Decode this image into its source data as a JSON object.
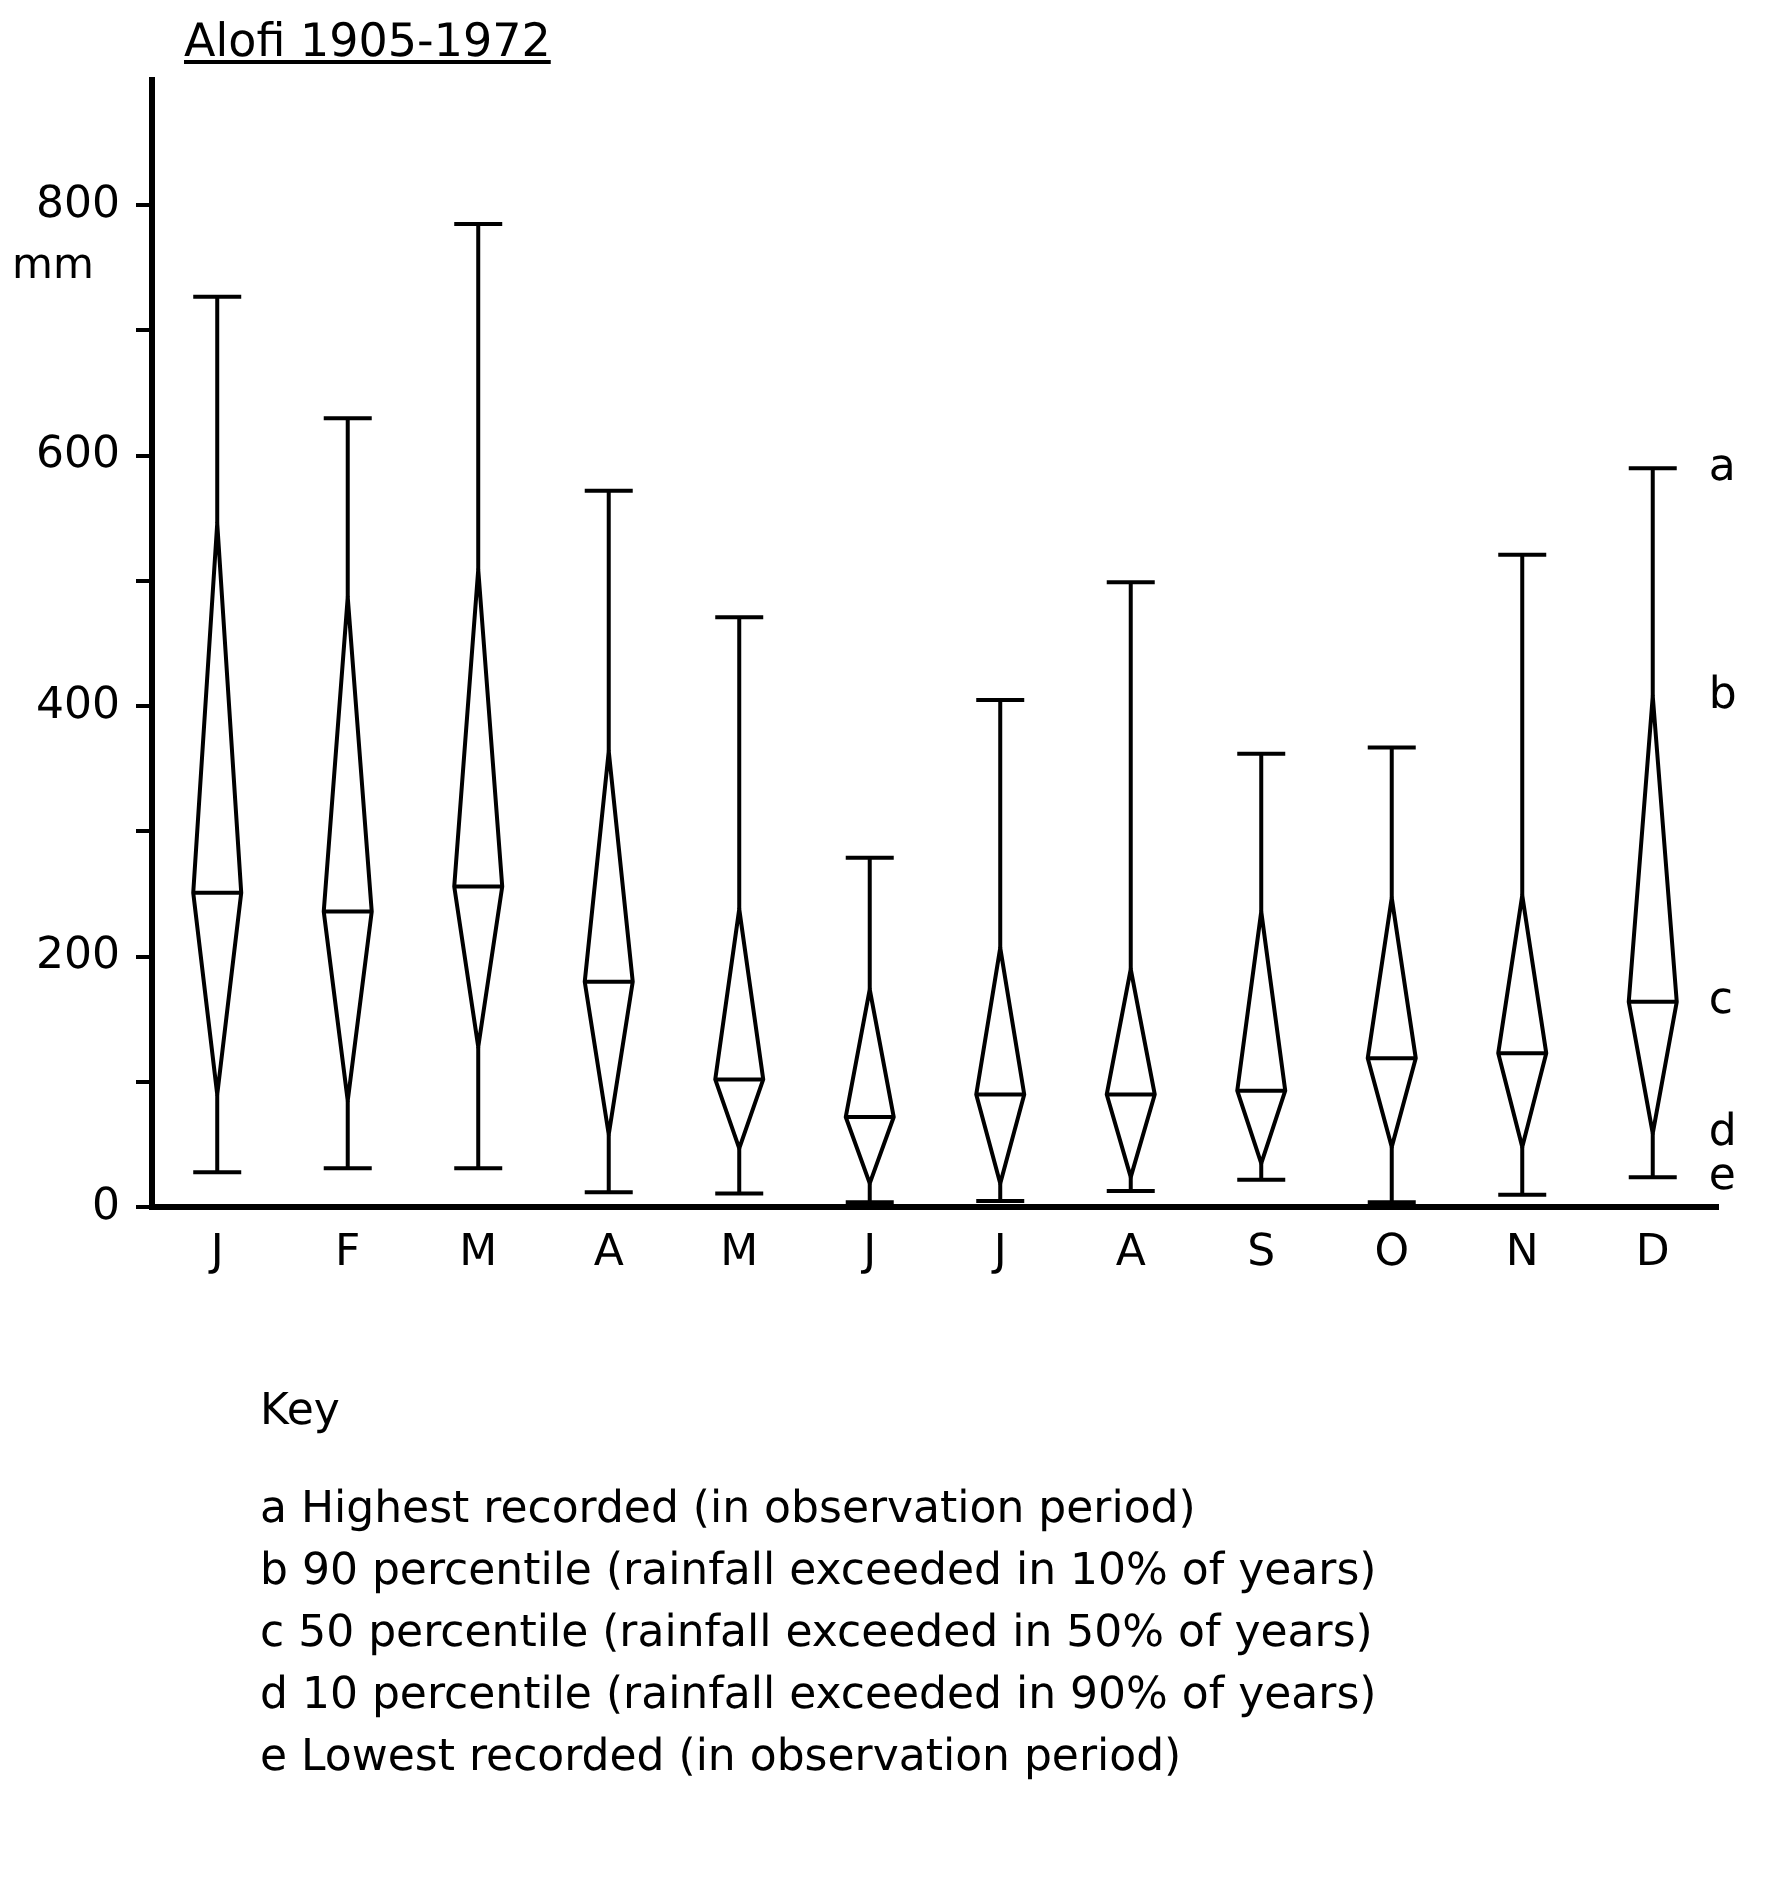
{
  "chart_data": {
    "type": "box",
    "title": "Alofi 1905-1972",
    "ylabel": "mm",
    "categories": [
      "J",
      "F",
      "M",
      "A",
      "M",
      "J",
      "J",
      "A",
      "S",
      "O",
      "N",
      "D"
    ],
    "boxes": [
      {
        "low": 28,
        "q1": 90,
        "median": 251,
        "q3": 546,
        "high": 727
      },
      {
        "low": 31,
        "q1": 85,
        "median": 236,
        "q3": 487,
        "high": 630
      },
      {
        "low": 31,
        "q1": 128,
        "median": 256,
        "q3": 509,
        "high": 785
      },
      {
        "low": 12,
        "q1": 58,
        "median": 180,
        "q3": 364,
        "high": 572
      },
      {
        "low": 11,
        "q1": 47,
        "median": 102,
        "q3": 238,
        "high": 471
      },
      {
        "low": 4,
        "q1": 19,
        "median": 72,
        "q3": 174,
        "high": 279
      },
      {
        "low": 5,
        "q1": 19,
        "median": 90,
        "q3": 207,
        "high": 405
      },
      {
        "low": 13,
        "q1": 24,
        "median": 90,
        "q3": 190,
        "high": 499
      },
      {
        "low": 22,
        "q1": 35,
        "median": 93,
        "q3": 236,
        "high": 362
      },
      {
        "low": 4,
        "q1": 48,
        "median": 119,
        "q3": 247,
        "high": 367
      },
      {
        "low": 10,
        "q1": 48,
        "median": 123,
        "q3": 249,
        "high": 521
      },
      {
        "low": 24,
        "q1": 59,
        "median": 164,
        "q3": 408,
        "high": 590
      }
    ],
    "ylim": [
      0,
      900
    ],
    "yticks": [
      0,
      {
        "value": 100,
        "label": null
      },
      200,
      {
        "value": 300,
        "label": null
      },
      400,
      {
        "value": 500,
        "label": null
      },
      600,
      {
        "value": 700,
        "label": null
      },
      800
    ],
    "grid": false,
    "annotations": [
      "a",
      "b",
      "c",
      "d",
      "e",
      "Key",
      "a  Highest recorded (in observation period)",
      "b  90 percentile (rainfall exceeded in 10% of years)",
      "c  50 percentile (rainfall exceeded in 50% of years)",
      "d  10 percentile (rainfall exceeded in 90% of years)",
      "e  Lowest recorded (in observation period)"
    ]
  }
}
